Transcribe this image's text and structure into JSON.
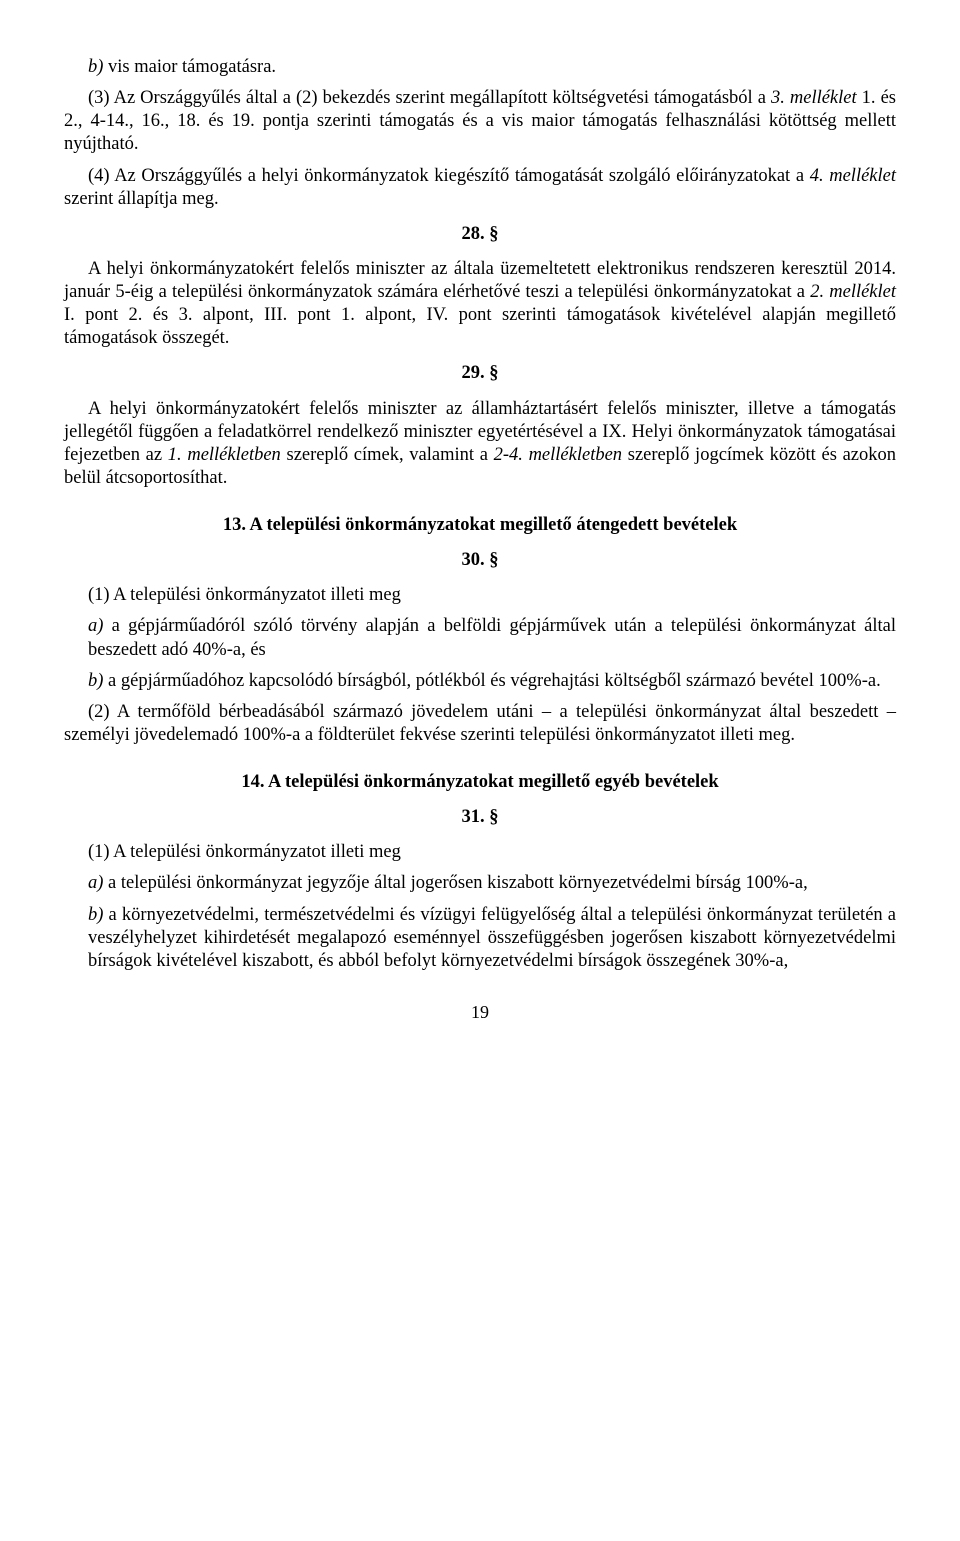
{
  "p_b": "b) vis maior támogatásra.",
  "p_3": "(3) Az Országgyűlés által a (2) bekezdés szerint megállapított költségvetési támogatásból a 3. melléklet 1. és 2., 4-14., 16., 18. és 19. pontja szerinti támogatás és a vis maior támogatás felhasználási kötöttség mellett nyújtható.",
  "p_4": "(4) Az Országgyűlés a helyi önkormányzatok kiegészítő támogatását szolgáló előirányzatokat a 4. melléklet szerint állapítja meg.",
  "s28": "28. §",
  "p28_body": "A helyi önkormányzatokért felelős miniszter az általa üzemeltetett elektronikus rendszeren keresztül 2014. január 5-éig a települési önkormányzatok számára elérhetővé teszi a települési önkormányzatokat a 2. melléklet I. pont 2. és 3. alpont, III. pont 1. alpont, IV. pont szerinti támogatások kivételével alapján megillető támogatások összegét.",
  "s29": "29. §",
  "p29_body": "A helyi önkormányzatokért felelős miniszter az államháztartásért felelős miniszter, illetve a támogatás jellegétől függően a feladatkörrel rendelkező miniszter egyetértésével a IX. Helyi önkormányzatok támogatásai fejezetben az 1. mellékletben szereplő címek, valamint a 2-4. mellékletben szereplő jogcímek között és azokon belül átcsoportosíthat.",
  "h13": "13. A települési önkormányzatokat megillető átengedett bevételek",
  "s30": "30. §",
  "p30_1_intro": "(1) A települési önkormányzatot illeti meg",
  "p30_1_a": "a) a gépjárműadóról szóló törvény alapján a belföldi gépjárművek után a települési önkormányzat által beszedett adó 40%-a, és",
  "p30_1_b": "b) a gépjárműadóhoz kapcsolódó bírságból, pótlékból és végrehajtási költségből származó bevétel 100%-a.",
  "p30_2": "(2) A termőföld bérbeadásából származó jövedelem utáni – a települési önkormányzat által beszedett – személyi jövedelemadó 100%-a a földterület fekvése szerinti települési önkormányzatot illeti meg.",
  "h14": "14. A települési önkormányzatokat megillető egyéb bevételek",
  "s31": "31. §",
  "p31_1_intro": "(1) A települési önkormányzatot illeti meg",
  "p31_1_a": "a) a települési önkormányzat jegyzője által jogerősen kiszabott környezetvédelmi bírság 100%-a,",
  "p31_1_b": "b) a környezetvédelmi, természetvédelmi és vízügyi felügyelőség által a települési önkormányzat területén a veszélyhelyzet kihirdetését megalapozó eseménnyel összefüggésben jogerősen kiszabott környezetvédelmi bírságok kivételével kiszabott, és abból befolyt környezetvédelmi bírságok összegének 30%-a,",
  "page_number": "19"
}
